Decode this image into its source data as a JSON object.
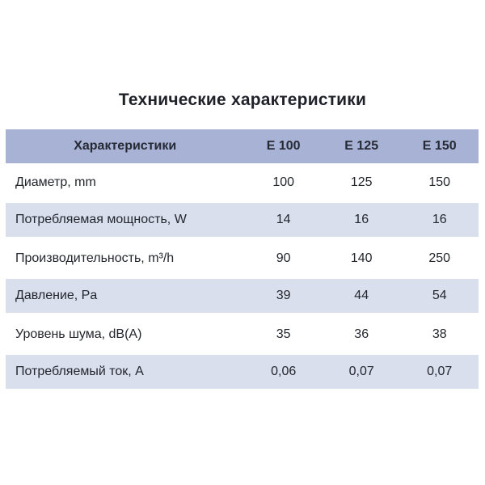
{
  "page": {
    "title": "Технические характеристики"
  },
  "table": {
    "header": {
      "label": "Характеристики",
      "columns": [
        "E 100",
        "E 125",
        "E 150"
      ]
    },
    "rows": [
      {
        "label": "Диаметр, mm",
        "values": [
          "100",
          "125",
          "150"
        ]
      },
      {
        "label": "Потребляемая мощность, W",
        "values": [
          "14",
          "16",
          "16"
        ]
      },
      {
        "label": "Производительность, m³/h",
        "values": [
          "90",
          "140",
          "250"
        ]
      },
      {
        "label": "Давление, Pa",
        "values": [
          "39",
          "44",
          "54"
        ]
      },
      {
        "label": "Уровень шума, dB(A)",
        "values": [
          "35",
          "36",
          "38"
        ]
      },
      {
        "label": "Потребляемый ток, A",
        "values": [
          "0,06",
          "0,07",
          "0,07"
        ]
      }
    ]
  },
  "colors": {
    "header_bg": "#a7b2d4",
    "row_alt_bg": "#dadfee",
    "row_bg": "#ffffff",
    "text": "#23262d",
    "background": "#ffffff"
  },
  "chart_data": {
    "type": "table",
    "title": "Технические характеристики",
    "columns": [
      "Характеристики",
      "E 100",
      "E 125",
      "E 150"
    ],
    "rows": [
      [
        "Диаметр, mm",
        "100",
        "125",
        "150"
      ],
      [
        "Потребляемая мощность, W",
        "14",
        "16",
        "16"
      ],
      [
        "Производительность, m³/h",
        "90",
        "140",
        "250"
      ],
      [
        "Давление, Pa",
        "39",
        "44",
        "54"
      ],
      [
        "Уровень шума, dB(A)",
        "35",
        "36",
        "38"
      ],
      [
        "Потребляемый ток, A",
        "0,06",
        "0,07",
        "0,07"
      ]
    ]
  }
}
